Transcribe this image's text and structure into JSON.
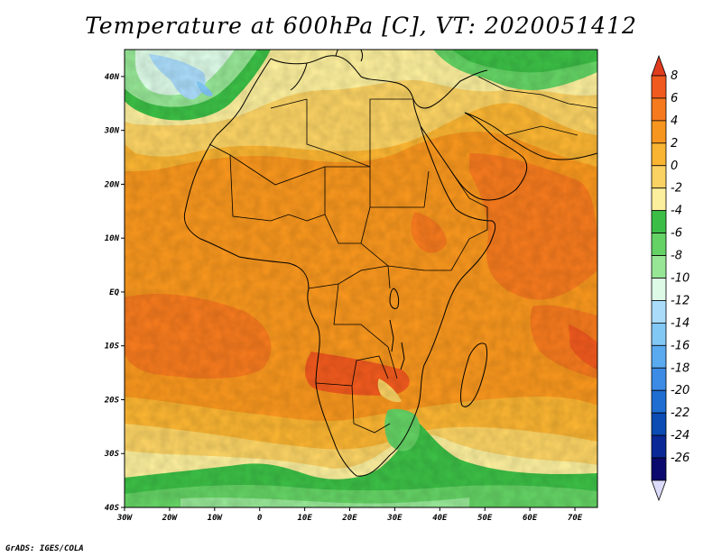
{
  "title": "Temperature at 600hPa [C], VT: 2020051412",
  "credit": "GrADS: IGES/COLA",
  "map": {
    "lon_range": [
      -30,
      75
    ],
    "lat_range": [
      -40,
      45
    ],
    "x_ticks": [
      {
        "lon": -30,
        "label": "30W"
      },
      {
        "lon": -20,
        "label": "20W"
      },
      {
        "lon": -10,
        "label": "10W"
      },
      {
        "lon": 0,
        "label": "0"
      },
      {
        "lon": 10,
        "label": "10E"
      },
      {
        "lon": 20,
        "label": "20E"
      },
      {
        "lon": 30,
        "label": "30E"
      },
      {
        "lon": 40,
        "label": "40E"
      },
      {
        "lon": 50,
        "label": "50E"
      },
      {
        "lon": 60,
        "label": "60E"
      },
      {
        "lon": 70,
        "label": "70E"
      }
    ],
    "y_ticks": [
      {
        "lat": 40,
        "label": "40N"
      },
      {
        "lat": 30,
        "label": "30N"
      },
      {
        "lat": 20,
        "label": "20N"
      },
      {
        "lat": 10,
        "label": "10N"
      },
      {
        "lat": 0,
        "label": "EQ"
      },
      {
        "lat": -10,
        "label": "10S"
      },
      {
        "lat": -20,
        "label": "20S"
      },
      {
        "lat": -30,
        "label": "30S"
      },
      {
        "lat": -40,
        "label": "40S"
      }
    ]
  },
  "colorbar": {
    "labels": [
      "8",
      "6",
      "4",
      "2",
      "0",
      "-2",
      "-4",
      "-6",
      "-8",
      "-10",
      "-12",
      "-14",
      "-16",
      "-18",
      "-20",
      "-22",
      "-24",
      "-26"
    ],
    "colors": [
      "#e03c1e",
      "#f05a1e",
      "#f57a1e",
      "#f7961e",
      "#f9b432",
      "#fad264",
      "#fbee9c",
      "#3cbe46",
      "#64d264",
      "#96e696",
      "#dcfae6",
      "#aadcfa",
      "#82c8f5",
      "#5aaaf0",
      "#3c8ce6",
      "#1e6ed2",
      "#0a4bb4",
      "#0a2896",
      "#0a0a6e",
      "#dcdcfa"
    ]
  }
}
